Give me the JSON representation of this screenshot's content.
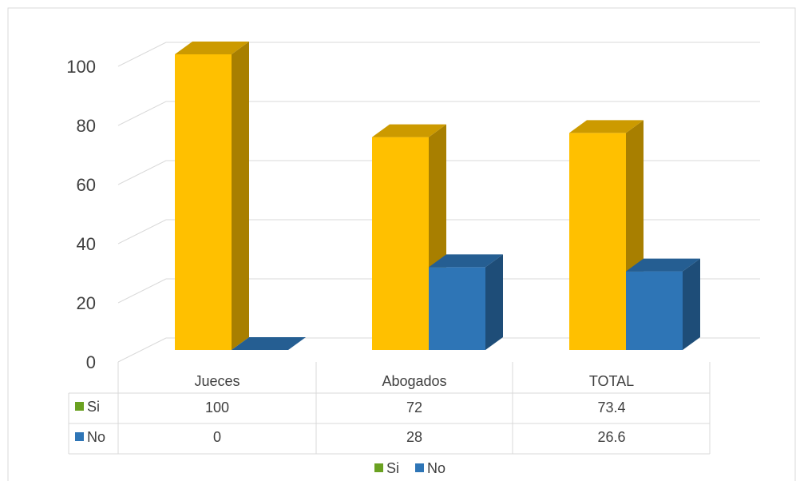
{
  "chart_data": {
    "type": "bar",
    "style": "3d-clustered-column-with-data-table",
    "categories": [
      "Jueces",
      "Abogados",
      "TOTAL"
    ],
    "series": [
      {
        "name": "Si",
        "values": [
          100,
          72,
          73.4
        ],
        "color": "#FFC000",
        "legend_color": "#6AA121"
      },
      {
        "name": "No",
        "values": [
          0,
          28,
          26.6
        ],
        "color": "#2E75B6",
        "legend_color": "#2E75B6"
      }
    ],
    "table_values": [
      [
        "100",
        "72",
        "73.4"
      ],
      [
        "0",
        "28",
        "26.6"
      ]
    ],
    "y_ticks": [
      "0",
      "20",
      "40",
      "60",
      "80",
      "100"
    ],
    "ylim": [
      0,
      100
    ],
    "grid": true,
    "legend_position": "bottom",
    "data_table": true
  }
}
